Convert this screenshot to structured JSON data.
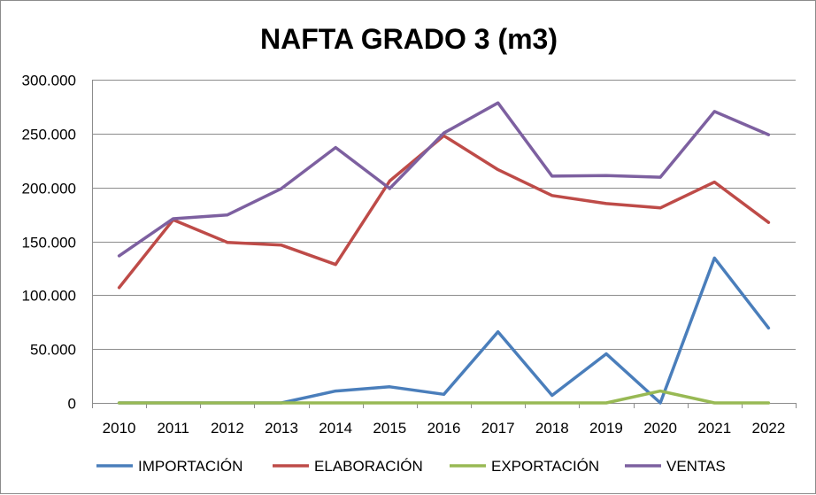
{
  "chart_data": {
    "type": "line",
    "title": "NAFTA GRADO 3 (m3)",
    "xlabel": "",
    "ylabel": "",
    "ylim": [
      0,
      300000
    ],
    "grid": true,
    "legend_position": "bottom",
    "categories": [
      "2010",
      "2011",
      "2012",
      "2013",
      "2014",
      "2015",
      "2016",
      "2017",
      "2018",
      "2019",
      "2020",
      "2021",
      "2022"
    ],
    "y_ticks": [
      0,
      50000,
      100000,
      150000,
      200000,
      250000,
      300000
    ],
    "y_tick_labels": [
      "0",
      "50.000",
      "100.000",
      "150.000",
      "200.000",
      "250.000",
      "300.000"
    ],
    "series": [
      {
        "name": "IMPORTACIÓN",
        "color": "#4a7ebb",
        "values": [
          0,
          0,
          0,
          0,
          11000,
          15000,
          8000,
          66000,
          7000,
          45500,
          0,
          134500,
          69500
        ]
      },
      {
        "name": "ELABORACIÓN",
        "color": "#be4b48",
        "values": [
          107000,
          170000,
          149000,
          146500,
          128500,
          206000,
          248000,
          216500,
          192500,
          185000,
          181000,
          205000,
          167500
        ]
      },
      {
        "name": "EXPORTACIÓN",
        "color": "#98b954",
        "values": [
          0,
          0,
          0,
          0,
          0,
          0,
          0,
          0,
          0,
          0,
          11000,
          0,
          0
        ]
      },
      {
        "name": "VENTAS",
        "color": "#7d60a0",
        "values": [
          136500,
          171000,
          174500,
          199000,
          237000,
          199000,
          250500,
          278500,
          210500,
          211000,
          209500,
          270500,
          249000
        ]
      }
    ]
  }
}
